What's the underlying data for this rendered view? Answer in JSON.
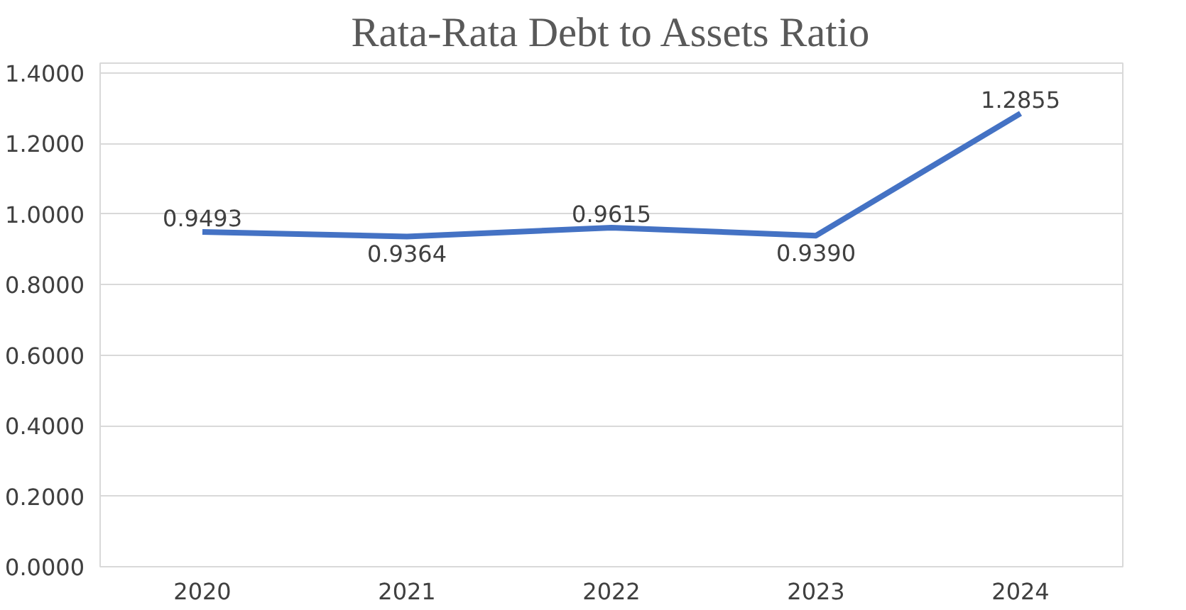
{
  "chart_data": {
    "type": "line",
    "title": "Rata-Rata Debt to Assets Ratio",
    "categories": [
      "2020",
      "2021",
      "2022",
      "2023",
      "2024"
    ],
    "series": [
      {
        "color": "#4472c4",
        "values": [
          0.9493,
          0.9364,
          0.9615,
          0.939,
          1.2855
        ],
        "value_labels": [
          "0.9493",
          "0.9364",
          "0.9615",
          "0.9390",
          "1.2855"
        ]
      }
    ],
    "ylim": [
      0,
      1.4
    ],
    "yticks": [
      {
        "value": 0,
        "label": "0.0000"
      },
      {
        "value": 0.2,
        "label": "0.2000"
      },
      {
        "value": 0.4,
        "label": "0.4000"
      },
      {
        "value": 0.6,
        "label": "0.6000"
      },
      {
        "value": 0.8,
        "label": "0.8000"
      },
      {
        "value": 1.0,
        "label": "1.0000"
      },
      {
        "value": 1.2,
        "label": "1.2000"
      },
      {
        "value": 1.4,
        "label": "1.4000"
      }
    ],
    "grid": "y",
    "marker": "none",
    "line_style": "solid"
  }
}
